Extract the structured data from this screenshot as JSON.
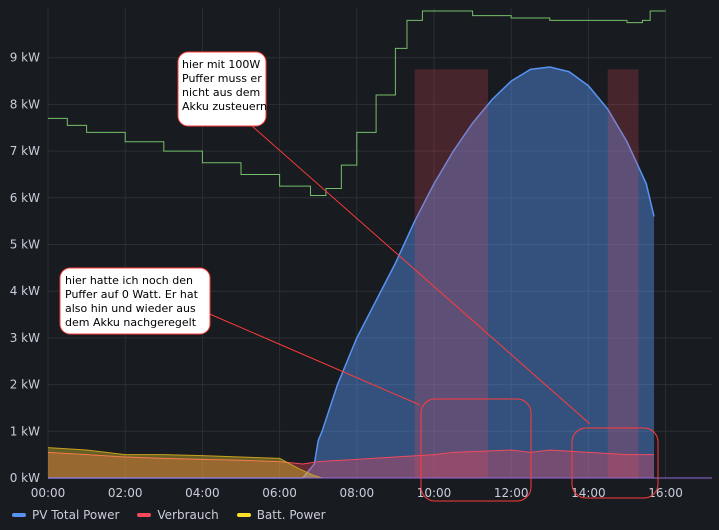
{
  "chart_data": {
    "type": "area",
    "y_ticks": [
      "0 kW",
      "1 kW",
      "2 kW",
      "3 kW",
      "4 kW",
      "5 kW",
      "6 kW",
      "7 kW",
      "8 kW",
      "9 kW"
    ],
    "x_ticks": [
      "00:00",
      "02:00",
      "04:00",
      "06:00",
      "08:00",
      "10:00",
      "12:00",
      "14:00",
      "16:00"
    ],
    "ylim": [
      0,
      9.8
    ],
    "xlim_hours": [
      0,
      17.5
    ],
    "series": [
      {
        "name": "PV Total Power",
        "color": "#5794f2",
        "x": [
          0,
          6.6,
          6.9,
          7.0,
          7.1,
          7.5,
          8.0,
          8.5,
          9.0,
          9.5,
          10.0,
          10.5,
          11.0,
          11.5,
          12.0,
          12.5,
          13.0,
          13.5,
          14.0,
          14.5,
          15.0,
          15.5,
          15.7
        ],
        "y": [
          0,
          0,
          0.3,
          0.8,
          1.0,
          2.0,
          3.0,
          3.8,
          4.6,
          5.5,
          6.3,
          7.0,
          7.6,
          8.1,
          8.5,
          8.75,
          8.8,
          8.7,
          8.4,
          7.9,
          7.2,
          6.3,
          5.6
        ]
      },
      {
        "name": "Verbrauch",
        "color": "#f2495c",
        "x": [
          0,
          1,
          2,
          3,
          4,
          5,
          6,
          6.6,
          7,
          8,
          9,
          10,
          10.5,
          12,
          12.5,
          13,
          14,
          15,
          15.7
        ],
        "y": [
          0.55,
          0.5,
          0.45,
          0.42,
          0.4,
          0.38,
          0.35,
          0.3,
          0.35,
          0.4,
          0.45,
          0.5,
          0.55,
          0.6,
          0.55,
          0.6,
          0.55,
          0.5,
          0.5
        ]
      },
      {
        "name": "Batt. Power",
        "color": "#fade2a",
        "x": [
          0,
          1,
          2,
          3,
          4,
          5,
          6,
          6.5,
          6.9,
          7.1,
          15.7
        ],
        "y": [
          0.65,
          0.6,
          0.5,
          0.5,
          0.48,
          0.45,
          0.42,
          0.2,
          0.05,
          0,
          0
        ]
      },
      {
        "name": "",
        "color": "#73bf69",
        "x": [
          0,
          0.5,
          1,
          2,
          3,
          4,
          5,
          6,
          6.8,
          7.2,
          7.6,
          8.0,
          8.5,
          9.0,
          9.3,
          9.7,
          10.0,
          11.0,
          12.0,
          13.0,
          14.0,
          15.0,
          15.4,
          15.6,
          16.0
        ],
        "y": [
          7.7,
          7.55,
          7.4,
          7.2,
          7.0,
          6.75,
          6.5,
          6.25,
          6.05,
          6.2,
          6.7,
          7.4,
          8.2,
          9.2,
          9.8,
          10.0,
          10.0,
          9.9,
          9.85,
          9.8,
          9.8,
          9.75,
          9.8,
          10.0,
          10.0
        ]
      }
    ],
    "annotations": [
      "hier mit 100W Puffer muss er nicht aus dem Akku zusteuern",
      "hier hatte ich noch den Puffer auf 0 Watt. Er hat also hin und wieder aus dem Akku nachgeregelt"
    ]
  },
  "annotations": {
    "top": [
      "hier mit 100W",
      "Puffer muss er",
      "nicht aus dem",
      "Akku zusteuern"
    ],
    "bottom": [
      "hier hatte ich noch den",
      "Puffer auf 0 Watt. Er hat",
      "also hin und wieder aus",
      "dem Akku nachgeregelt"
    ]
  },
  "legend": [
    {
      "label": "PV Total Power",
      "color": "#5794f2"
    },
    {
      "label": "Verbrauch",
      "color": "#f2495c"
    },
    {
      "label": "Batt. Power",
      "color": "#fade2a"
    }
  ]
}
